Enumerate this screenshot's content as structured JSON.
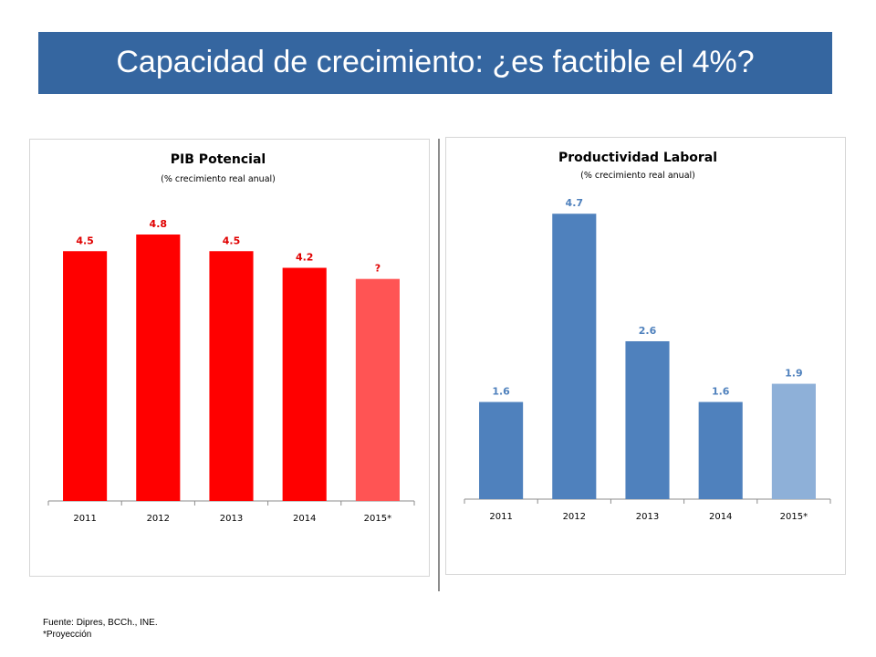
{
  "slide": {
    "title": "Capacidad de crecimiento: ¿es factible el 4%?",
    "source": "Fuente: Dipres, BCCh., INE.",
    "note": "*Proyección"
  },
  "chart_data": [
    {
      "type": "bar",
      "title": "PIB Potencial",
      "subtitle": "(% crecimiento real anual)",
      "categories": [
        "2011",
        "2012",
        "2013",
        "2014",
        "2015*"
      ],
      "values": [
        4.5,
        4.8,
        4.5,
        4.2,
        4.0
      ],
      "labels": [
        "4.5",
        "4.8",
        "4.5",
        "4.2",
        "?"
      ],
      "colors": [
        "#ff0000",
        "#ff0000",
        "#ff0000",
        "#ff0000",
        "#ff5454"
      ],
      "label_color": "#e00000",
      "ylim": [
        0,
        6
      ],
      "grid": false
    },
    {
      "type": "bar",
      "title": "Productividad Laboral",
      "subtitle": "(% crecimiento real anual)",
      "categories": [
        "2011",
        "2012",
        "2013",
        "2014",
        "2015*"
      ],
      "values": [
        1.6,
        4.7,
        2.6,
        1.6,
        1.9
      ],
      "labels": [
        "1.6",
        "4.7",
        "2.6",
        "1.6",
        "1.9"
      ],
      "colors": [
        "#4f81bd",
        "#4f81bd",
        "#4f81bd",
        "#4f81bd",
        "#8eb0d8"
      ],
      "label_color": "#4f81bd",
      "ylim": [
        0,
        5.5
      ],
      "grid": false
    }
  ]
}
